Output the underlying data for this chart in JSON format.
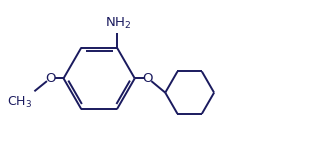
{
  "background_color": "#ffffff",
  "line_color": "#1a1a5e",
  "line_width": 1.4,
  "font_size": 9.5,
  "text_color": "#1a1a5e"
}
